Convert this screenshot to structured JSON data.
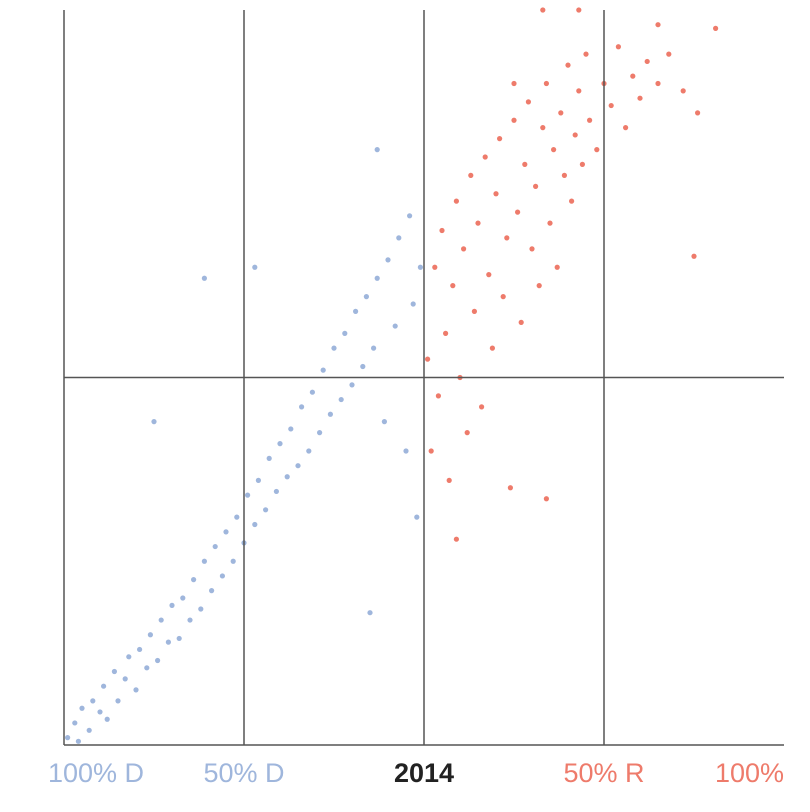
{
  "chart_data": {
    "type": "scatter",
    "xlim": [
      -100,
      100
    ],
    "ylim": [
      -100,
      100
    ],
    "y_reference": 0,
    "xticks": [
      {
        "value": -100,
        "label": "100% D"
      },
      {
        "value": -50,
        "label": "50% D"
      },
      {
        "value": 0,
        "label": "2014"
      },
      {
        "value": 50,
        "label": "50% R"
      },
      {
        "value": 100,
        "label": "100%"
      }
    ],
    "series": [
      {
        "color": "#9fb6dc",
        "x": [
          -99,
          -97,
          -96,
          -95,
          -93,
          -92,
          -90,
          -89,
          -88,
          -86,
          -85,
          -83,
          -82,
          -80,
          -79,
          -77,
          -76,
          -74,
          -73,
          -71,
          -70,
          -68,
          -67,
          -65,
          -64,
          -62,
          -61,
          -59,
          -58,
          -56,
          -55,
          -53,
          -52,
          -50,
          -49,
          -47,
          -46,
          -44,
          -43,
          -41,
          -40,
          -38,
          -37,
          -35,
          -34,
          -32,
          -31,
          -29,
          -28,
          -26,
          -25,
          -23,
          -22,
          -20,
          -19,
          -17,
          -16,
          -14,
          -13,
          -11,
          -10,
          -8,
          -7,
          -5,
          -4,
          -3,
          -2,
          -1,
          -75,
          -61,
          -47,
          -13,
          -15
        ],
        "values": [
          -98,
          -94,
          -99,
          -90,
          -96,
          -88,
          -91,
          -84,
          -93,
          -80,
          -88,
          -82,
          -76,
          -85,
          -74,
          -79,
          -70,
          -77,
          -66,
          -72,
          -62,
          -71,
          -60,
          -66,
          -55,
          -63,
          -50,
          -58,
          -46,
          -54,
          -42,
          -50,
          -38,
          -45,
          -32,
          -40,
          -28,
          -36,
          -22,
          -31,
          -18,
          -27,
          -14,
          -24,
          -8,
          -20,
          -4,
          -15,
          2,
          -10,
          8,
          -6,
          12,
          -2,
          18,
          3,
          22,
          8,
          27,
          -12,
          32,
          14,
          38,
          -20,
          44,
          20,
          -38,
          30,
          -12,
          27,
          30,
          62,
          -64
        ]
      },
      {
        "color": "#ee7b6b",
        "x": [
          1,
          2,
          3,
          4,
          5,
          6,
          7,
          8,
          9,
          10,
          11,
          12,
          13,
          14,
          15,
          16,
          17,
          18,
          19,
          20,
          21,
          22,
          23,
          24,
          25,
          26,
          27,
          28,
          29,
          30,
          31,
          32,
          33,
          34,
          35,
          36,
          37,
          38,
          39,
          40,
          41,
          42,
          43,
          44,
          45,
          46,
          48,
          50,
          52,
          54,
          56,
          58,
          60,
          62,
          65,
          68,
          72,
          76,
          75,
          34,
          9,
          33,
          43,
          65,
          81,
          25
        ],
        "values": [
          5,
          -20,
          30,
          -5,
          40,
          12,
          -28,
          25,
          48,
          0,
          35,
          -15,
          55,
          18,
          42,
          -8,
          60,
          28,
          8,
          50,
          65,
          22,
          38,
          -30,
          70,
          45,
          15,
          58,
          75,
          35,
          52,
          25,
          68,
          80,
          42,
          62,
          30,
          72,
          55,
          85,
          48,
          66,
          78,
          58,
          88,
          70,
          62,
          80,
          74,
          90,
          68,
          82,
          76,
          86,
          80,
          88,
          78,
          72,
          33,
          -33,
          -44,
          100,
          100,
          96,
          95,
          80
        ]
      }
    ]
  }
}
